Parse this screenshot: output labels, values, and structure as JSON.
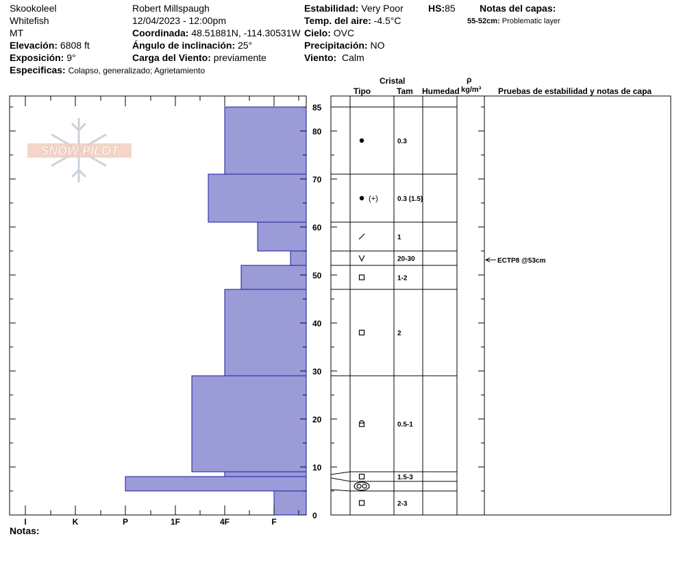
{
  "header": {
    "location": "Skookoleel",
    "region": "Whitefish",
    "state": "MT",
    "observer": "Robert Millspaugh",
    "datetime": "12/04/2023 - 12:00pm",
    "elevation_label": "Elevación:",
    "elevation_value": "6808 ft",
    "aspect_label": "Exposición:",
    "aspect_value": "9°",
    "coord_label": "Coordinada:",
    "coord_value": "48.51881N, -114.30531W",
    "slope_label": "Ángulo de inclinación:",
    "slope_value": "25°",
    "wind_load_label": "Carga del Viento:",
    "wind_load_value": "previamente",
    "specifics_label": "Especificas:",
    "specifics_value": "Colapso, generalizado; Agrietamiento",
    "stability_label": "Estabilidad:",
    "stability_value": "Very Poor",
    "air_temp_label": "Temp. del aire:",
    "air_temp_value": "-4.5°C",
    "sky_label": "Cielo:",
    "sky_value": "OVC",
    "precip_label": "Precipitación:",
    "precip_value": "NO",
    "wind_label": "Viento:",
    "wind_value": "Calm",
    "hs_label": "HS:",
    "hs_value": "85",
    "layer_notes_label": "Notas del capas:",
    "layer_note_depth": "55-52cm:",
    "layer_note_text": "Problematic layer"
  },
  "logo_text": "SNOW PILOT",
  "columns": {
    "crystal": "Cristal",
    "type": "Tipo",
    "size": "Tam",
    "moisture": "Humedad",
    "density_symbol": "ρ",
    "density_unit": "kg/m³",
    "stability_notes": "Pruebas de estabilidad y notas de capa"
  },
  "notes_label": "Notas:",
  "chart_data": {
    "type": "bar",
    "ylim": [
      0,
      85
    ],
    "y_ticks": [
      "0",
      "10",
      "20",
      "30",
      "40",
      "50",
      "60",
      "70",
      "80",
      "85"
    ],
    "x_hardness_labels": [
      "I",
      "K",
      "P",
      "1F",
      "4F",
      "F"
    ],
    "hardness_layers": [
      {
        "bottom": 0,
        "top": 5,
        "hardness": "F"
      },
      {
        "bottom": 5,
        "top": 8,
        "hardness": "P"
      },
      {
        "bottom": 8,
        "top": 9,
        "hardness": "4F"
      },
      {
        "bottom": 9,
        "top": 29,
        "hardness": "1F+"
      },
      {
        "bottom": 29,
        "top": 47,
        "hardness": "4F"
      },
      {
        "bottom": 47,
        "top": 52,
        "hardness": "4F+"
      },
      {
        "bottom": 52,
        "top": 55,
        "hardness": "F+"
      },
      {
        "bottom": 55,
        "top": 61,
        "hardness": "F-"
      },
      {
        "bottom": 61,
        "top": 71,
        "hardness": "4F-"
      },
      {
        "bottom": 71,
        "top": 85,
        "hardness": "4F"
      }
    ],
    "crystal_layers": [
      {
        "bottom": 71,
        "top": 85,
        "grain": "precipitation-particles",
        "size": "0.3"
      },
      {
        "bottom": 61,
        "top": 71,
        "grain": "precipitation-particles",
        "secondary": "(+)",
        "size": "0.3 (1.5)"
      },
      {
        "bottom": 55,
        "top": 61,
        "grain": "decomposing-fragments",
        "size": "1"
      },
      {
        "bottom": 52,
        "top": 55,
        "grain": "surface-hoar",
        "size": "20-30"
      },
      {
        "bottom": 47,
        "top": 52,
        "grain": "faceted-crystals",
        "size": "1-2"
      },
      {
        "bottom": 29,
        "top": 47,
        "grain": "faceted-crystals",
        "size": "2"
      },
      {
        "bottom": 9,
        "top": 29,
        "grain": "faceted-rounding",
        "size": "0.5-1"
      },
      {
        "bottom": 7,
        "top": 9,
        "grain": "faceted-crystals",
        "size": "1.5-3"
      },
      {
        "bottom": 5,
        "top": 7,
        "grain": "melt-freeze",
        "size": ""
      },
      {
        "bottom": 0,
        "top": 5,
        "grain": "faceted-crystals",
        "size": "2-3"
      }
    ],
    "stability_tests": [
      {
        "depth": 53,
        "label": "ECTP8 @53cm"
      }
    ]
  }
}
